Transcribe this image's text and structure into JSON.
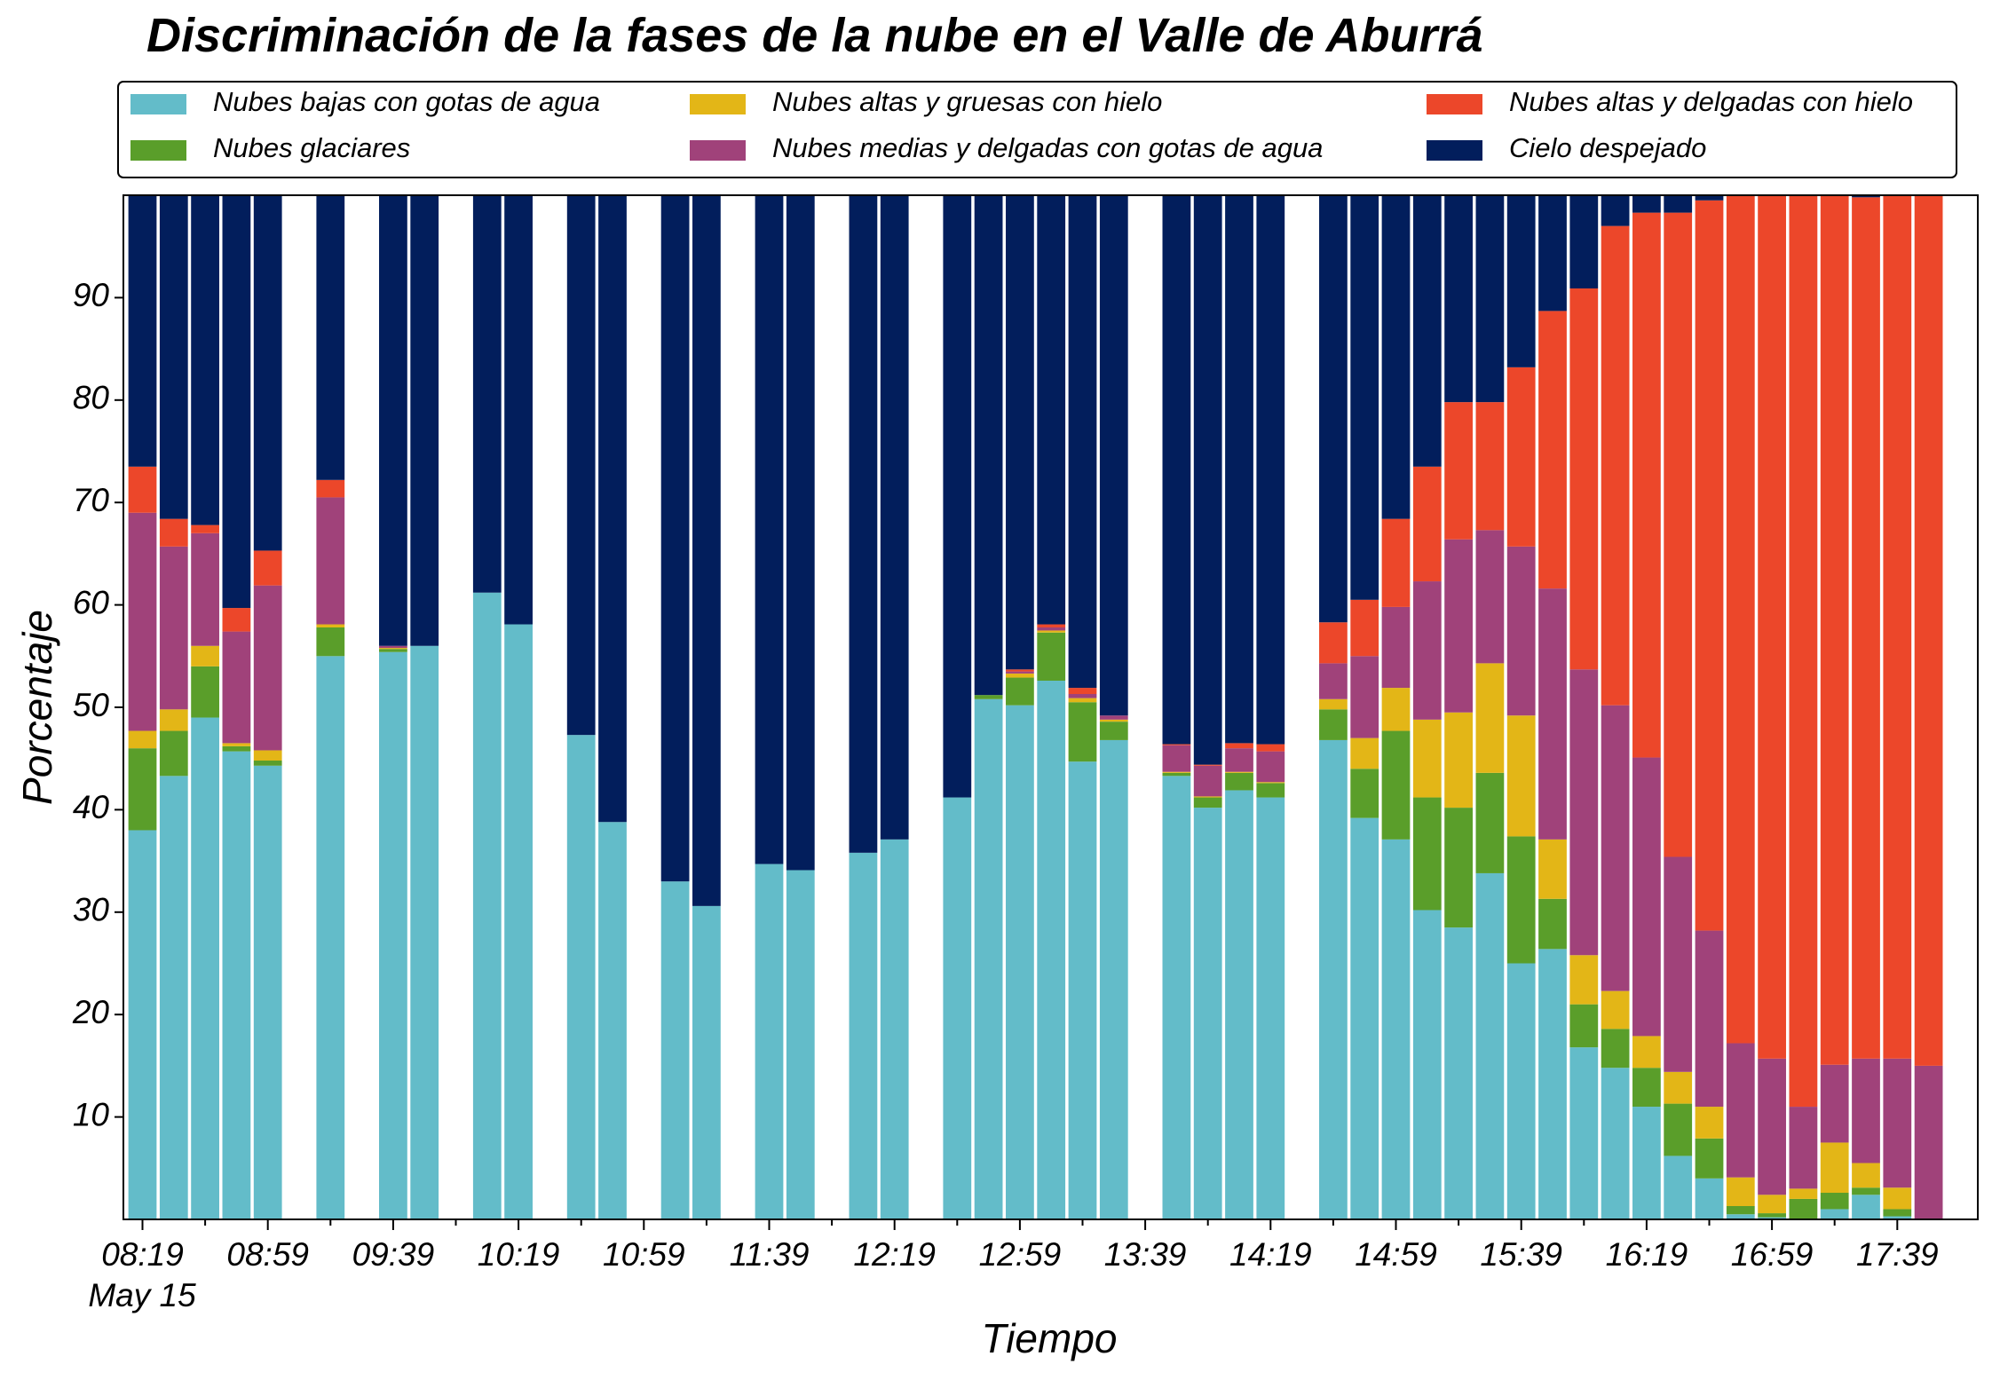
{
  "chart_data": {
    "type": "stacked_bar",
    "title": "Discriminación de la fases de la nube en el Valle de Aburrá",
    "xlabel": "Tiempo",
    "ylabel": "Porcentaje",
    "annotation": "May 15",
    "categories": [
      "08:19",
      null,
      null,
      null,
      "08:59",
      null,
      null,
      null,
      "09:39",
      null,
      null,
      null,
      "10:19",
      null,
      null,
      null,
      "10:59",
      null,
      null,
      null,
      "11:39",
      null,
      null,
      null,
      "12:19",
      null,
      null,
      null,
      "12:59",
      null,
      null,
      null,
      "13:39",
      null,
      null,
      null,
      "14:19",
      null,
      null,
      null,
      "14:59",
      null,
      null,
      null,
      "15:39",
      null,
      null,
      null,
      "16:19",
      null,
      null,
      null,
      "16:59",
      null,
      null,
      null,
      "17:39",
      null
    ],
    "ylim": [
      0,
      100
    ],
    "yticks": [
      10,
      20,
      30,
      40,
      50,
      60,
      70,
      80,
      90
    ],
    "legend": "top",
    "series": [
      {
        "name": "Nubes bajas con gotas de agua",
        "color": "#63bcc9",
        "values": [
          38,
          43.3,
          49,
          45.7,
          44.3,
          null,
          55,
          null,
          55.4,
          56,
          null,
          61.2,
          58.1,
          null,
          47.3,
          38.8,
          null,
          33,
          30.6,
          null,
          34.7,
          34.1,
          null,
          35.8,
          37.1,
          null,
          41.2,
          50.8,
          50.2,
          52.6,
          44.7,
          46.8,
          null,
          43.3,
          40.2,
          41.9,
          41.2,
          null,
          46.8,
          39.2,
          37.1,
          30.2,
          28.5,
          33.8,
          25,
          26.4,
          16.8,
          14.8,
          11,
          6.2,
          4,
          0.5,
          0.2,
          0,
          1,
          2.4,
          0.3,
          0
        ]
      },
      {
        "name": "Nubes glaciares",
        "color": "#5a9e2a",
        "values": [
          8,
          4.4,
          5,
          0.5,
          0.5,
          null,
          2.8,
          null,
          0.3,
          0,
          null,
          0,
          0,
          null,
          0,
          0,
          null,
          0,
          0,
          null,
          0,
          0,
          null,
          0,
          0,
          null,
          0,
          0.4,
          2.7,
          4.7,
          5.8,
          1.8,
          null,
          0.3,
          1,
          1.7,
          1.4,
          null,
          3,
          4.8,
          10.6,
          11,
          11.7,
          9.8,
          12.4,
          4.9,
          4.2,
          3.8,
          3.8,
          5.1,
          3.9,
          0.8,
          0.4,
          2,
          1.6,
          0.7,
          0.7,
          0
        ]
      },
      {
        "name": "Nubes altas y gruesas con hielo",
        "color": "#e3b617",
        "values": [
          1.7,
          2.1,
          2,
          0.3,
          1,
          null,
          0.3,
          null,
          0.1,
          0,
          null,
          0,
          0,
          null,
          0,
          0,
          null,
          0,
          0,
          null,
          0,
          0,
          null,
          0,
          0,
          null,
          0,
          0,
          0.4,
          0.2,
          0.4,
          0.2,
          null,
          0.1,
          0.1,
          0.1,
          0.1,
          null,
          1,
          3,
          4.2,
          7.6,
          9.3,
          10.7,
          11.8,
          5.8,
          4.8,
          3.7,
          3.1,
          3.1,
          3.1,
          2.8,
          1.8,
          1,
          4.9,
          2.4,
          2.1,
          0
        ]
      },
      {
        "name": "Nubes medias y delgadas con gotas de agua",
        "color": "#a0427a",
        "values": [
          21.3,
          15.9,
          11,
          10.9,
          16.1,
          null,
          12.4,
          null,
          0.2,
          0,
          null,
          0,
          0,
          null,
          0,
          0,
          null,
          0,
          0,
          null,
          0,
          0,
          null,
          0,
          0,
          null,
          0,
          0,
          0.2,
          0.3,
          0.4,
          0.4,
          null,
          2.6,
          3,
          2.3,
          3,
          null,
          3.5,
          8,
          7.9,
          13.5,
          16.9,
          13,
          16.5,
          24.5,
          27.9,
          27.9,
          27.2,
          21,
          17.2,
          13.1,
          13.3,
          8,
          7.6,
          10.2,
          12.6,
          15
        ]
      },
      {
        "name": "Nubes altas y delgadas con hielo",
        "color": "#ec472a",
        "values": [
          4.5,
          2.7,
          0.8,
          2.3,
          3.4,
          null,
          1.7,
          null,
          0,
          0,
          null,
          0,
          0,
          null,
          0,
          0,
          null,
          0,
          0,
          null,
          0,
          0,
          null,
          0,
          0,
          null,
          0,
          0,
          0.2,
          0.3,
          0.6,
          0,
          null,
          0.1,
          0.1,
          0.5,
          0.7,
          null,
          4,
          5.5,
          8.6,
          11.2,
          13.4,
          12.5,
          17.5,
          27.1,
          37.2,
          46.8,
          53.2,
          62.9,
          71.3,
          82.8,
          84.3,
          89,
          84.9,
          84.1,
          84.3,
          85
        ]
      },
      {
        "name": "Cielo despejado",
        "color": "#021e5c",
        "values": [
          26.5,
          31.6,
          32.2,
          40.3,
          34.7,
          null,
          27.8,
          null,
          44,
          44,
          null,
          38.8,
          41.9,
          null,
          52.7,
          61.2,
          null,
          67,
          69.4,
          null,
          65.3,
          65.9,
          null,
          64.2,
          62.9,
          null,
          58.8,
          48.8,
          46.3,
          41.9,
          48.1,
          50.8,
          null,
          53.6,
          55.6,
          53.5,
          53.6,
          null,
          41.7,
          39.5,
          31.6,
          26.5,
          20.2,
          20.2,
          16.8,
          11.3,
          9.1,
          3,
          1.7,
          1.7,
          0.5,
          0,
          0,
          0,
          0,
          0.2,
          0,
          0
        ]
      }
    ]
  }
}
